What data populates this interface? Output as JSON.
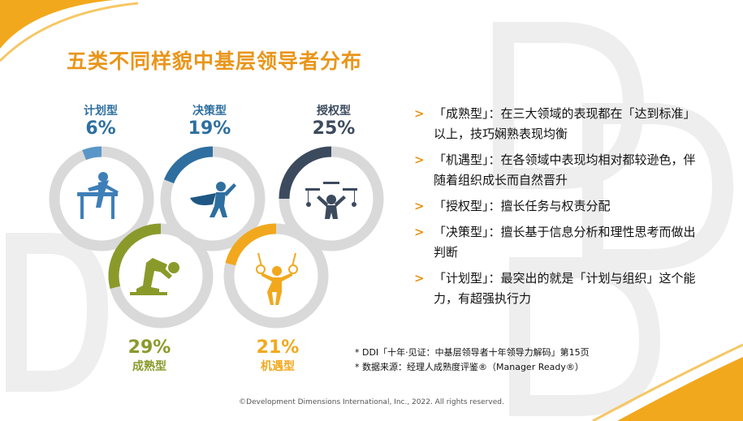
{
  "slide": {
    "title": "五类不同样貌中基层领导者分布",
    "colors": {
      "accent": "#E9961B",
      "blue": "#2E6FA0",
      "lightblue": "#5A96C8",
      "slate": "#3C4A5E",
      "olive": "#8A9A2A",
      "orange": "#F2A81D",
      "ring": "#D9D9D9"
    },
    "segments": [
      {
        "name": "计划型",
        "percent": "6%",
        "value": 0.06,
        "color": "#5A96C8",
        "icon": "planner-figure-icon"
      },
      {
        "name": "决策型",
        "percent": "19%",
        "value": 0.19,
        "color": "#2E6FA0",
        "icon": "caped-hero-icon"
      },
      {
        "name": "授权型",
        "percent": "25%",
        "value": 0.25,
        "color": "#3C4A5E",
        "icon": "puppeteer-icon"
      },
      {
        "name": "成熟型",
        "percent": "29%",
        "value": 0.29,
        "color": "#8A9A2A",
        "icon": "swimmer-start-icon"
      },
      {
        "name": "机遇型",
        "percent": "21%",
        "value": 0.21,
        "color": "#F2A81D",
        "icon": "gymnast-rings-icon"
      }
    ],
    "bullets": [
      "「成熟型」：在三大领域的表现都在「达到标准」以上，技巧娴熟表现均衡",
      "「机遇型」：在各领域中表现均相对都较逊色，伴随着组织成长而自然晋升",
      "「授权型」：擅长任务与权责分配",
      "「决策型」：擅长基于信息分析和理性思考而做出判断",
      "「计划型」：最突出的就是「计划与组织」这个能力，有超强执行力"
    ],
    "bullet_marker": ">",
    "footnotes": [
      "* DDI「十年·见证：中基层领导者十年领导力解码」第15页",
      "* 数据来源：经理人成熟度评鉴®（Manager Ready®）"
    ],
    "copyright": "©Development Dimensions International, Inc., 2022. All rights reserved."
  }
}
